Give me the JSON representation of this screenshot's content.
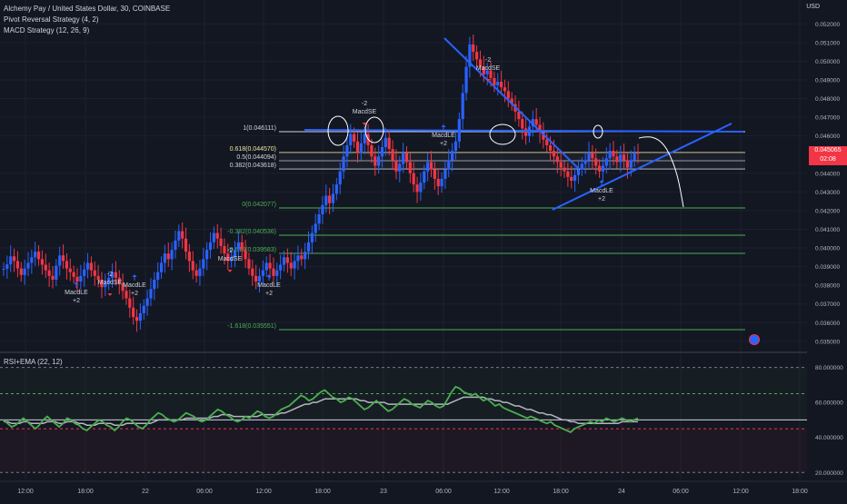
{
  "legend": {
    "title": "Alchemy Pay / United States Dollar, 30, COINBASE",
    "pivot": "Pivot Reversal Strategy (4, 2)",
    "macd": "MACD Strategy (12, 26, 9)"
  },
  "currency": "USD",
  "indicator_label": "RSI+EMA (22, 12)",
  "last_price": {
    "value": "0.045065",
    "countdown": "02:08"
  },
  "price_axis": {
    "ticks": [
      "0.052000",
      "0.051000",
      "0.050000",
      "0.049000",
      "0.048000",
      "0.047000",
      "0.046000",
      "0.044000",
      "0.043000",
      "0.042000",
      "0.041000",
      "0.040000",
      "0.039000",
      "0.038000",
      "0.037000",
      "0.036000",
      "0.035000"
    ]
  },
  "rsi_axis": {
    "ticks": [
      "80.000000",
      "60.000000",
      "40.000000",
      "20.000000"
    ]
  },
  "time_axis": {
    "ticks": [
      "12:00",
      "18:00",
      "22",
      "06:00",
      "12:00",
      "18:00",
      "23",
      "06:00",
      "12:00",
      "18:00",
      "24",
      "06:00",
      "12:00",
      "18:00"
    ]
  },
  "fib_levels": [
    {
      "label": "1(0.046111)",
      "color": "#d1d4dc"
    },
    {
      "label": "0.618(0.044570)",
      "color": "#f0e6a0"
    },
    {
      "label": "0.5(0.044094)",
      "color": "#d1d4dc"
    },
    {
      "label": "0.382(0.043618)",
      "color": "#d1d4dc"
    },
    {
      "label": "0(0.042077)",
      "color": "#4caf50"
    },
    {
      "label": "-0.382(0.040536)",
      "color": "#4caf50"
    },
    {
      "label": "-0.618(0.039583)",
      "color": "#4caf50"
    },
    {
      "label": "-1.618(0.035551)",
      "color": "#4caf50"
    }
  ],
  "signals": [
    {
      "lines": [
        "MacdLE",
        "+2"
      ],
      "dir": "up"
    },
    {
      "lines": [
        "-2",
        "MacdSE"
      ],
      "dir": "down"
    },
    {
      "lines": [
        "MacdLE",
        "+2"
      ],
      "dir": "up"
    },
    {
      "lines": [
        "-2",
        "MacdSE"
      ],
      "dir": "down"
    },
    {
      "lines": [
        "MacdLE",
        "+2"
      ],
      "dir": "up"
    },
    {
      "lines": [
        "-2",
        "MacdSE"
      ],
      "dir": "down"
    },
    {
      "lines": [
        "MacdLE",
        "+2"
      ],
      "dir": "up"
    },
    {
      "lines": [
        "-2",
        "MacdSE"
      ],
      "dir": "down"
    },
    {
      "lines": [
        "MacdLE",
        "+2"
      ],
      "dir": "up"
    }
  ],
  "colors": {
    "up": "#2962ff",
    "down": "#f23645",
    "rsi": "#4caf50",
    "ema": "#b2b5be",
    "trend": "#2962ff"
  },
  "chart_data": {
    "type": "candlestick",
    "symbol": "Alchemy Pay / United States Dollar",
    "interval": "30",
    "exchange": "COINBASE",
    "candles_close": [
      0.03888,
      0.03912,
      0.03955,
      0.0393,
      0.0389,
      0.03855,
      0.0389,
      0.0392,
      0.0395,
      0.0398,
      0.0394,
      0.0391,
      0.0388,
      0.0385,
      0.0383,
      0.03905,
      0.0396,
      0.0393,
      0.0389,
      0.0387,
      0.03845,
      0.0382,
      0.0385,
      0.03885,
      0.0392,
      0.0388,
      0.0385,
      0.0383,
      0.0379,
      0.0381,
      0.0384,
      0.0387,
      0.0384,
      0.0381,
      0.0377,
      0.0373,
      0.0368,
      0.0363,
      0.0361,
      0.0365,
      0.0369,
      0.0373,
      0.0378,
      0.0383,
      0.0387,
      0.0392,
      0.0397,
      0.0394,
      0.0399,
      0.0404,
      0.0409,
      0.0405,
      0.0398,
      0.0393,
      0.0388,
      0.0385,
      0.0389,
      0.0394,
      0.0399,
      0.0403,
      0.0408,
      0.0405,
      0.0401,
      0.0397,
      0.0393,
      0.0395,
      0.0399,
      0.0403,
      0.0399,
      0.0394,
      0.0389,
      0.0385,
      0.0382,
      0.0385,
      0.0388,
      0.0392,
      0.0389,
      0.0385,
      0.0388,
      0.0391,
      0.0395,
      0.0392,
      0.0389,
      0.0393,
      0.0396,
      0.0394,
      0.0398,
      0.0403,
      0.0408,
      0.0413,
      0.0418,
      0.0423,
      0.0428,
      0.0424,
      0.0429,
      0.0434,
      0.0441,
      0.0449,
      0.0455,
      0.0461,
      0.0457,
      0.0451,
      0.0456,
      0.0461,
      0.0455,
      0.0449,
      0.0444,
      0.0449,
      0.0454,
      0.0459,
      0.0453,
      0.0447,
      0.0441,
      0.0445,
      0.0451,
      0.0446,
      0.044,
      0.0434,
      0.043,
      0.0435,
      0.0441,
      0.0446,
      0.0442,
      0.0437,
      0.0433,
      0.0437,
      0.0442,
      0.0447,
      0.0452,
      0.0457,
      0.0469,
      0.0483,
      0.0497,
      0.0509,
      0.0505,
      0.0501,
      0.0497,
      0.0493,
      0.0495,
      0.0491,
      0.0487,
      0.0489,
      0.0486,
      0.0484,
      0.048,
      0.0477,
      0.0473,
      0.0469,
      0.0464,
      0.046,
      0.0465,
      0.0469,
      0.0466,
      0.0462,
      0.0458,
      0.0455,
      0.0452,
      0.0449,
      0.0446,
      0.0443,
      0.0441,
      0.0438,
      0.0436,
      0.0439,
      0.0442,
      0.0445,
      0.0447,
      0.0451,
      0.0448,
      0.0444,
      0.0441,
      0.0444,
      0.0448,
      0.0452,
      0.0449,
      0.0446,
      0.045,
      0.0447,
      0.0443,
      0.0447,
      0.0451,
      0.04507
    ],
    "xlabel": "",
    "ylabel": "USD",
    "ylim": [
      0.0347,
      0.0525
    ],
    "last_value": 0.045065,
    "rsi_ema": {
      "name": "RSI+EMA (22, 12)",
      "ylim": [
        16,
        86
      ],
      "levels": [
        80,
        65,
        50,
        45,
        20
      ],
      "rsi": [
        50,
        48,
        46,
        47,
        49,
        51,
        49,
        47,
        45,
        47,
        50,
        52,
        50,
        48,
        46,
        48,
        51,
        50,
        48,
        47,
        45,
        44,
        46,
        48,
        50,
        49,
        47,
        46,
        44,
        46,
        49,
        51,
        50,
        48,
        46,
        45,
        47,
        50,
        52,
        54,
        53,
        51,
        50,
        49,
        50,
        52,
        54,
        53,
        52,
        50,
        49,
        50,
        52,
        54,
        56,
        55,
        53,
        52,
        50,
        49,
        50,
        52,
        51,
        53,
        55,
        54,
        52,
        51,
        52,
        54,
        56,
        57,
        58,
        60,
        62,
        64,
        63,
        61,
        62,
        64,
        66,
        67,
        65,
        63,
        62,
        60,
        61,
        63,
        62,
        60,
        58,
        56,
        57,
        59,
        61,
        59,
        57,
        55,
        56,
        58,
        60,
        62,
        61,
        59,
        58,
        57,
        59,
        61,
        60,
        58,
        57,
        58,
        62,
        66,
        69,
        68,
        66,
        65,
        64,
        65,
        63,
        61,
        62,
        60,
        58,
        59,
        57,
        56,
        55,
        54,
        53,
        52,
        51,
        52,
        51,
        50,
        49,
        48,
        49,
        47,
        46,
        45,
        44,
        43,
        45,
        46,
        47,
        48,
        49,
        48,
        50,
        49,
        51,
        50,
        49,
        50,
        51,
        50,
        49,
        50,
        51
      ],
      "ema": [
        49,
        49,
        48,
        48,
        48,
        49,
        49,
        48,
        48,
        48,
        48,
        49,
        49,
        49,
        48,
        48,
        49,
        49,
        49,
        48,
        48,
        47,
        47,
        47,
        48,
        48,
        48,
        48,
        47,
        47,
        47,
        48,
        48,
        48,
        48,
        48,
        48,
        48,
        49,
        50,
        50,
        50,
        50,
        50,
        50,
        50,
        51,
        51,
        51,
        51,
        51,
        51,
        51,
        52,
        52,
        53,
        53,
        53,
        52,
        52,
        52,
        52,
        52,
        52,
        52,
        53,
        53,
        53,
        53,
        53,
        54,
        54,
        55,
        56,
        57,
        58,
        59,
        59,
        60,
        60,
        61,
        62,
        62,
        62,
        62,
        62,
        62,
        62,
        62,
        62,
        61,
        61,
        60,
        60,
        60,
        60,
        60,
        59,
        59,
        59,
        59,
        59,
        59,
        59,
        59,
        59,
        59,
        59,
        59,
        59,
        59,
        59,
        59,
        60,
        61,
        62,
        63,
        63,
        63,
        63,
        63,
        63,
        62,
        62,
        61,
        61,
        60,
        60,
        59,
        58,
        58,
        57,
        56,
        56,
        55,
        54,
        54,
        53,
        53,
        52,
        51,
        50,
        50,
        49,
        49,
        48,
        48,
        48,
        48,
        48,
        48,
        48,
        48,
        48,
        48,
        48,
        49,
        49,
        49,
        49,
        49
      ]
    }
  }
}
